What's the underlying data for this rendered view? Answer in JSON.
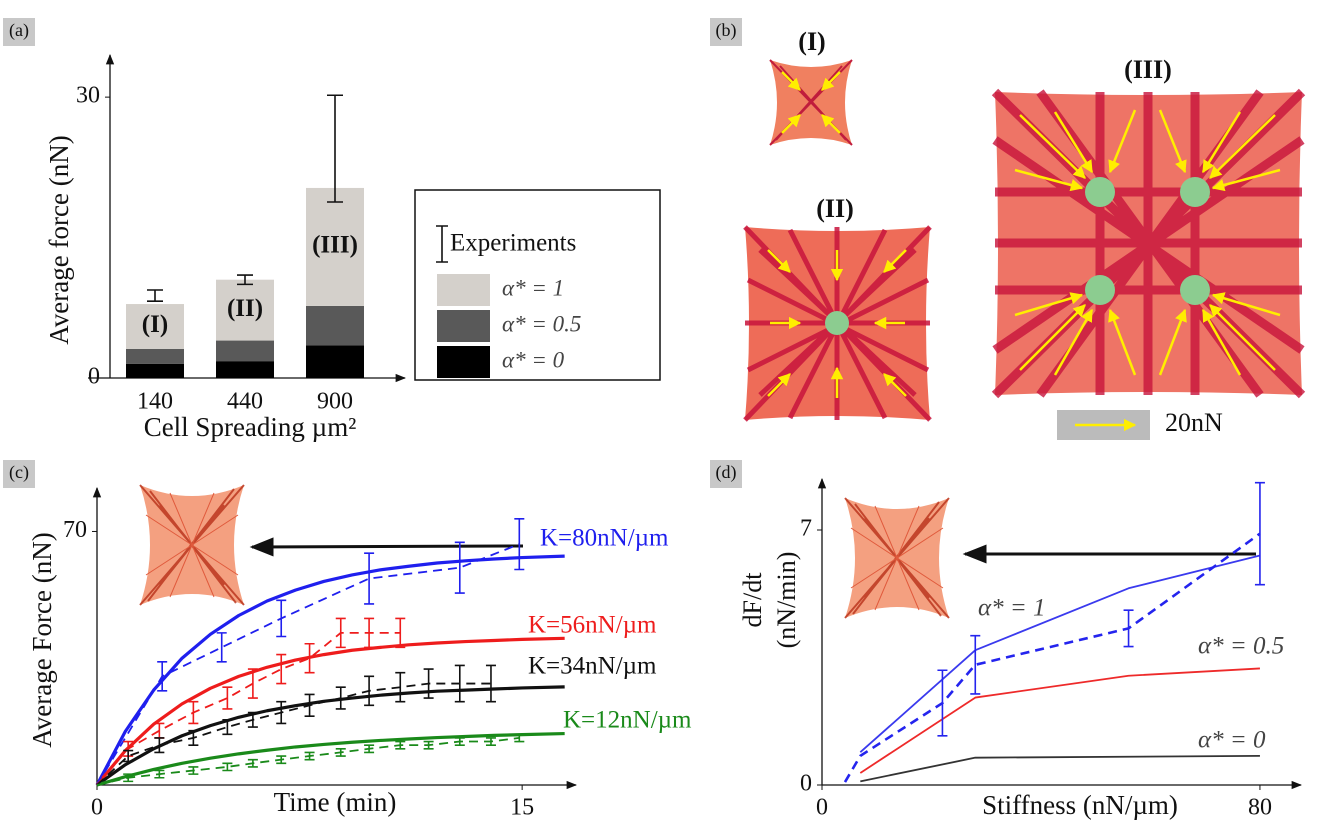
{
  "chart_data": [
    {
      "panel_label": "(a)",
      "type": "bar",
      "stacked": true,
      "ylabel": "Average force (nN)",
      "xlabel": "Cell Spreading µm²",
      "categories": [
        "140",
        "440",
        "900"
      ],
      "ylim": [
        0,
        34.5
      ],
      "yticks": [
        0,
        30
      ],
      "series": [
        {
          "name": "α* = 0",
          "color": "#000000",
          "values": [
            1.5,
            1.8,
            3.5
          ]
        },
        {
          "name": "α* = 0.5",
          "color": "#595959",
          "values": [
            1.6,
            2.2,
            4.2
          ]
        },
        {
          "name": "α* = 1",
          "color": "#d4d0cb",
          "values": [
            4.8,
            6.5,
            12.6
          ]
        }
      ],
      "experiments": {
        "name": "Experiments",
        "values": [
          8.8,
          10.5,
          24.5
        ],
        "errors": [
          0.6,
          0.5,
          5.7
        ]
      },
      "bar_labels": [
        "(I)",
        "(II)",
        "(III)"
      ],
      "legend": "right"
    },
    {
      "panel_label": "(c)",
      "type": "line",
      "xlabel": "Time (min)",
      "ylabel": "Average Force (nN)",
      "xlim": [
        0,
        16.9
      ],
      "ylim": [
        0,
        82
      ],
      "xticks": [
        0,
        15
      ],
      "yticks": [
        70
      ],
      "series": [
        {
          "name": "K=80nN/µm",
          "color": "#1f1fee",
          "style": "solid",
          "x": [
            0,
            1,
            2,
            3,
            4,
            5,
            6,
            7,
            8,
            9,
            10,
            11,
            12,
            13,
            14,
            15,
            16.5
          ],
          "values": [
            0,
            14.8,
            26.2,
            35.0,
            41.6,
            46.8,
            50.8,
            53.8,
            56.2,
            58.0,
            59.4,
            60.4,
            61.3,
            61.9,
            62.4,
            62.8,
            63.2
          ]
        },
        {
          "name": "K=56nN/µm",
          "color": "#ee1c1c",
          "style": "solid",
          "x": [
            0,
            1,
            2,
            3,
            4,
            5,
            6,
            7,
            8,
            9,
            10,
            11,
            12,
            13,
            14,
            15,
            16.5
          ],
          "values": [
            0,
            9.5,
            16.8,
            22.4,
            26.7,
            30.0,
            32.5,
            34.5,
            36.0,
            37.2,
            38.0,
            38.7,
            39.2,
            39.6,
            39.9,
            40.2,
            40.5
          ]
        },
        {
          "name": "K=34nN/µm",
          "color": "#111111",
          "style": "solid",
          "x": [
            0,
            1,
            2,
            3,
            4,
            5,
            6,
            7,
            8,
            9,
            10,
            11,
            12,
            13,
            14,
            15,
            16.5
          ],
          "values": [
            0,
            5.6,
            10.0,
            13.6,
            16.4,
            18.7,
            20.5,
            21.9,
            23.1,
            24.0,
            24.8,
            25.4,
            25.9,
            26.2,
            26.5,
            26.8,
            27.1
          ]
        },
        {
          "name": "K=12nN/µm",
          "color": "#1a8a1a",
          "style": "solid",
          "x": [
            0,
            1,
            2,
            3,
            4,
            5,
            6,
            7,
            8,
            9,
            10,
            11,
            12,
            13,
            14,
            15,
            16.5
          ],
          "values": [
            0,
            2.3,
            4.3,
            6.0,
            7.4,
            8.6,
            9.6,
            10.5,
            11.2,
            11.8,
            12.3,
            12.7,
            13.1,
            13.4,
            13.7,
            13.9,
            14.2
          ]
        },
        {
          "color": "#1f1fee",
          "style": "dashed",
          "x": [
            0,
            2.3,
            4.4,
            6.5,
            9.6,
            12.8,
            14.9
          ],
          "values": [
            0,
            30,
            38,
            46,
            57,
            60,
            66.5
          ],
          "errors": [
            null,
            4,
            4,
            5,
            7,
            7,
            7
          ]
        },
        {
          "color": "#ee1c1c",
          "style": "dashed",
          "x": [
            0,
            1.1,
            2.2,
            3.4,
            4.6,
            5.5,
            6.5,
            7.5,
            8.6,
            9.6,
            10.7
          ],
          "values": [
            0,
            10,
            15,
            20,
            24,
            28,
            32,
            35,
            42,
            42,
            42
          ],
          "errors": [
            null,
            2,
            2,
            3,
            3,
            4,
            4,
            4,
            4,
            4,
            4
          ]
        },
        {
          "color": "#111111",
          "style": "dashed",
          "x": [
            0,
            1.1,
            2.2,
            3.4,
            4.6,
            5.5,
            6.5,
            7.5,
            8.6,
            9.6,
            10.7,
            11.7,
            12.8,
            13.9
          ],
          "values": [
            0,
            8,
            11,
            13,
            16,
            18,
            20,
            22,
            24,
            26,
            27,
            28,
            28,
            28
          ],
          "errors": [
            null,
            1.5,
            2,
            2,
            2,
            2,
            3,
            3,
            3,
            4,
            4,
            4,
            5,
            5
          ]
        },
        {
          "color": "#1a8a1a",
          "style": "dashed",
          "x": [
            0,
            1.1,
            2.2,
            3.4,
            4.6,
            5.5,
            6.5,
            7.5,
            8.6,
            9.6,
            10.7,
            11.7,
            12.8,
            13.9,
            14.9
          ],
          "values": [
            0,
            2,
            3,
            4,
            5,
            6,
            7,
            8,
            9,
            10,
            11,
            11,
            12,
            12,
            13
          ],
          "errors": [
            null,
            1,
            1,
            1,
            1,
            1,
            1,
            1,
            1,
            1,
            1,
            1,
            1,
            1,
            1
          ]
        }
      ]
    },
    {
      "panel_label": "(d)",
      "type": "line",
      "xlabel": "Stiffness (nN/µm)",
      "ylabel": [
        "dF/dt",
        "(nN/min)"
      ],
      "xlim": [
        0,
        87.5
      ],
      "ylim": [
        0,
        8.4
      ],
      "xticks": [
        0,
        80
      ],
      "yticks": [
        0,
        7
      ],
      "series": [
        {
          "name": "α* = 1",
          "color": "#3a3aee",
          "style": "solid",
          "x": [
            7,
            28,
            56,
            80
          ],
          "values": [
            0.9,
            3.7,
            5.4,
            6.3
          ]
        },
        {
          "name": "α* = 0.5",
          "color": "#ee2a2a",
          "style": "solid",
          "x": [
            7,
            28,
            56,
            80
          ],
          "values": [
            0.33,
            2.4,
            3.0,
            3.2
          ]
        },
        {
          "name": "α* = 0",
          "color": "#333333",
          "style": "solid",
          "x": [
            7,
            28,
            80
          ],
          "values": [
            0.1,
            0.75,
            0.8
          ]
        },
        {
          "color": "#2424ee",
          "style": "dashed",
          "x": [
            4.2,
            7,
            22,
            28,
            56,
            80
          ],
          "values": [
            0.08,
            0.8,
            2.25,
            3.3,
            4.3,
            6.9
          ],
          "errors": [
            null,
            null,
            0.9,
            0.8,
            0.5,
            1.4
          ]
        }
      ]
    }
  ],
  "panel_b": {
    "panel_label": "(b)",
    "cell_labels": [
      "(I)",
      "(II)",
      "(III)"
    ],
    "scale_bar": "20nN"
  }
}
